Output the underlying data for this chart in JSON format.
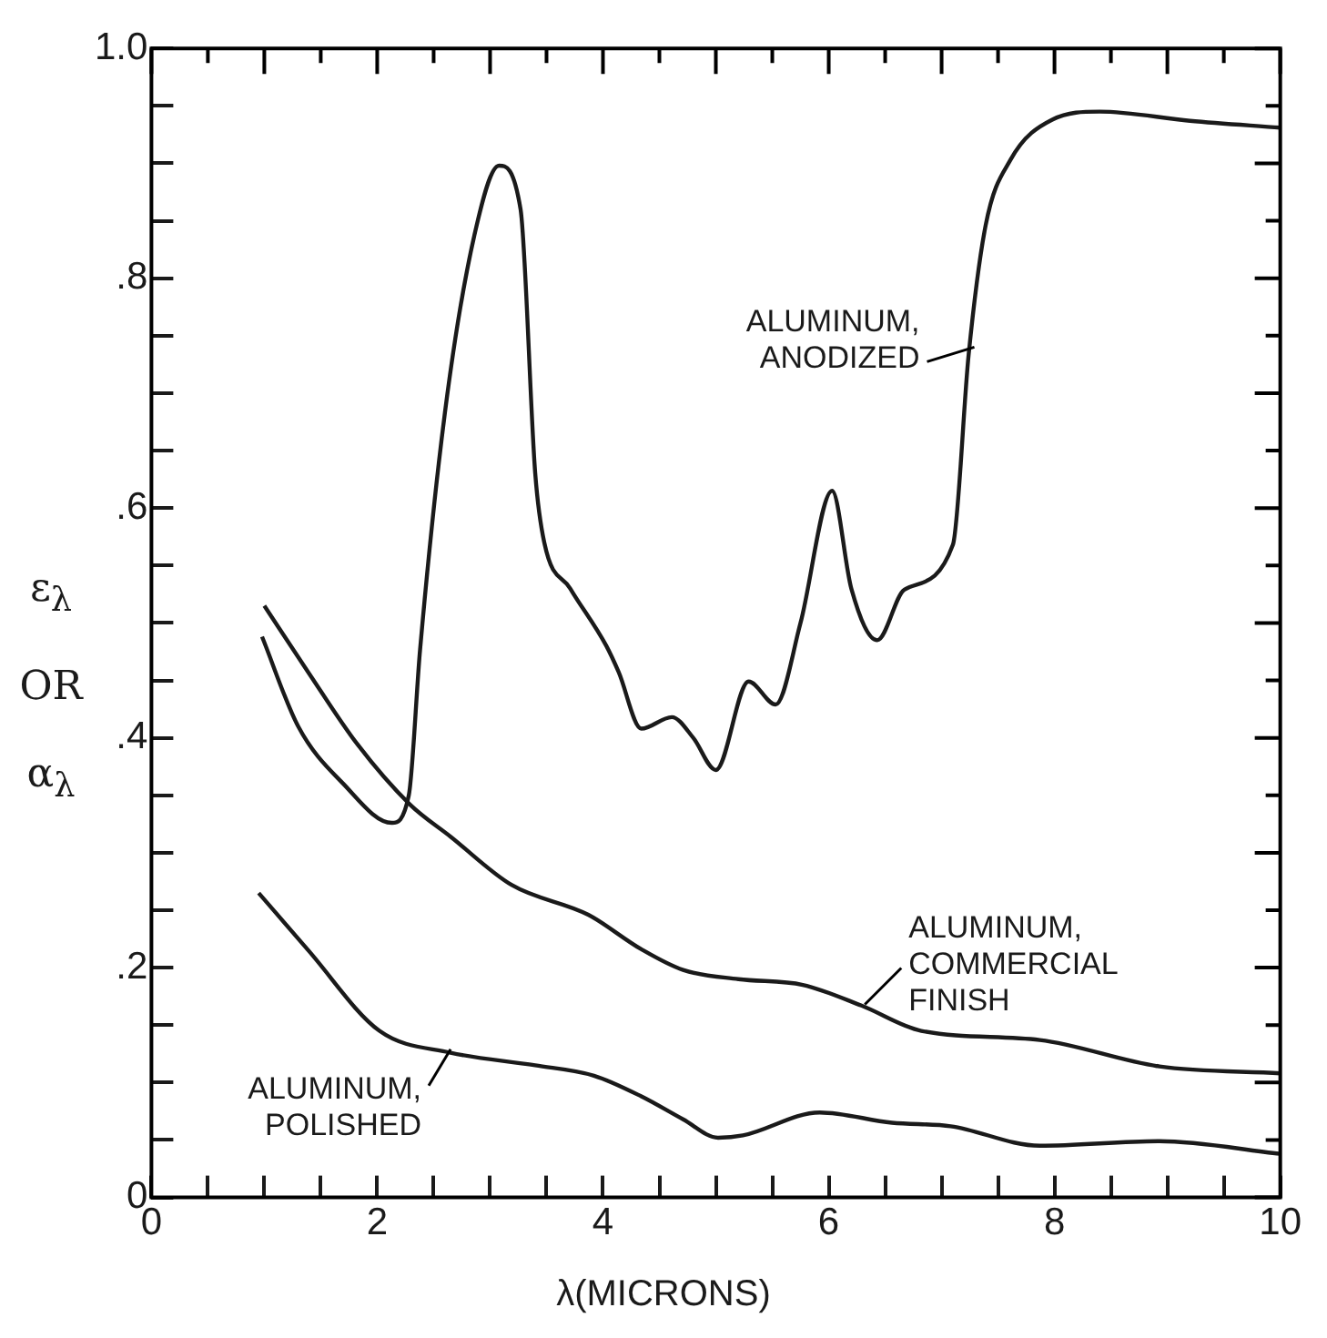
{
  "chart_data": {
    "type": "line",
    "xlabel": "λ(MICRONS)",
    "ylabel": "ε$_{λ}$ OR α$_{λ}$",
    "xlim": [
      0,
      10
    ],
    "ylim": [
      0,
      1
    ],
    "xticks": [
      0,
      {
        "value": 0.5,
        "label": null
      },
      {
        "value": 1,
        "label": null
      },
      {
        "value": 1.5,
        "label": null
      },
      2,
      {
        "value": 2.5,
        "label": null
      },
      {
        "value": 3,
        "label": null
      },
      {
        "value": 3.5,
        "label": null
      },
      4,
      {
        "value": 4.5,
        "label": null
      },
      {
        "value": 5,
        "label": null
      },
      {
        "value": 5.5,
        "label": null
      },
      6,
      {
        "value": 6.5,
        "label": null
      },
      {
        "value": 7,
        "label": null
      },
      {
        "value": 7.5,
        "label": null
      },
      8,
      {
        "value": 8.5,
        "label": null
      },
      {
        "value": 9,
        "label": null
      },
      {
        "value": 9.5,
        "label": null
      },
      10
    ],
    "yticks": [
      0,
      {
        "value": 0.05,
        "label": null
      },
      {
        "value": 0.1,
        "label": null
      },
      {
        "value": 0.15,
        "label": null
      },
      {
        "value": 0.2,
        "label": ".2"
      },
      {
        "value": 0.25,
        "label": null
      },
      {
        "value": 0.3,
        "label": null
      },
      {
        "value": 0.35,
        "label": null
      },
      {
        "value": 0.4,
        "label": ".4"
      },
      {
        "value": 0.45,
        "label": null
      },
      {
        "value": 0.5,
        "label": null
      },
      {
        "value": 0.55,
        "label": null
      },
      {
        "value": 0.6,
        "label": ".6"
      },
      {
        "value": 0.65,
        "label": null
      },
      {
        "value": 0.7,
        "label": null
      },
      {
        "value": 0.75,
        "label": null
      },
      {
        "value": 0.8,
        "label": ".8"
      },
      {
        "value": 0.85,
        "label": null
      },
      {
        "value": 0.9,
        "label": null
      },
      {
        "value": 0.95,
        "label": null
      },
      {
        "value": 1,
        "label": "1.0"
      }
    ],
    "grid": false,
    "legend": false,
    "marker": "none",
    "line_style": "solid",
    "series": [
      {
        "color": "#1a1a1a",
        "x": [
          0.98,
          1.3,
          1.7,
          2.13,
          2.28,
          2.38,
          2.6,
          2.86,
          3.08,
          3.27,
          3.4,
          3.48,
          3.71,
          4.03,
          4.14,
          4.34,
          4.61,
          4.8,
          5.0,
          5.29,
          5.53,
          5.75,
          6.03,
          6.2,
          6.43,
          6.67,
          7.1,
          7.24,
          7.39,
          7.61,
          7.98,
          8.4,
          9.2,
          10
        ],
        "values": [
          0.488,
          0.41,
          0.36,
          0.326,
          0.35,
          0.477,
          0.683,
          0.837,
          0.898,
          0.86,
          0.63,
          0.57,
          0.53,
          0.48,
          0.457,
          0.408,
          0.418,
          0.4,
          0.372,
          0.449,
          0.429,
          0.5,
          0.615,
          0.53,
          0.485,
          0.529,
          0.568,
          0.734,
          0.846,
          0.903,
          0.938,
          0.945,
          0.937,
          0.931
        ]
      },
      {
        "color": "#1a1a1a",
        "x": [
          1.0,
          1.39,
          1.82,
          2.29,
          2.65,
          3.19,
          3.87,
          4.34,
          4.71,
          5.2,
          5.77,
          6.29,
          6.82,
          7.87,
          8.93,
          10
        ],
        "values": [
          0.515,
          0.457,
          0.395,
          0.342,
          0.314,
          0.272,
          0.246,
          0.216,
          0.198,
          0.19,
          0.185,
          0.167,
          0.145,
          0.137,
          0.114,
          0.108
        ]
      },
      {
        "color": "#1a1a1a",
        "x": [
          0.95,
          1.39,
          2.02,
          2.65,
          3.4,
          3.92,
          4.34,
          4.71,
          5.02,
          5.24,
          5.92,
          6.56,
          7.08,
          7.87,
          8.93,
          10
        ],
        "values": [
          0.265,
          0.215,
          0.145,
          0.126,
          0.115,
          0.106,
          0.088,
          0.068,
          0.052,
          0.054,
          0.074,
          0.065,
          0.062,
          0.045,
          0.049,
          0.038
        ]
      }
    ],
    "annotations": [
      {
        "text": "ALUMINUM,\nANODIZED",
        "x": 7.29,
        "y": 0.74
      },
      {
        "text": "ALUMINUM,\nCOMMERCIAL\nFINISH",
        "x": 6.32,
        "y": 0.168
      },
      {
        "text": "ALUMINUM,\nPOLISHED",
        "x": 2.65,
        "y": 0.129
      }
    ]
  }
}
